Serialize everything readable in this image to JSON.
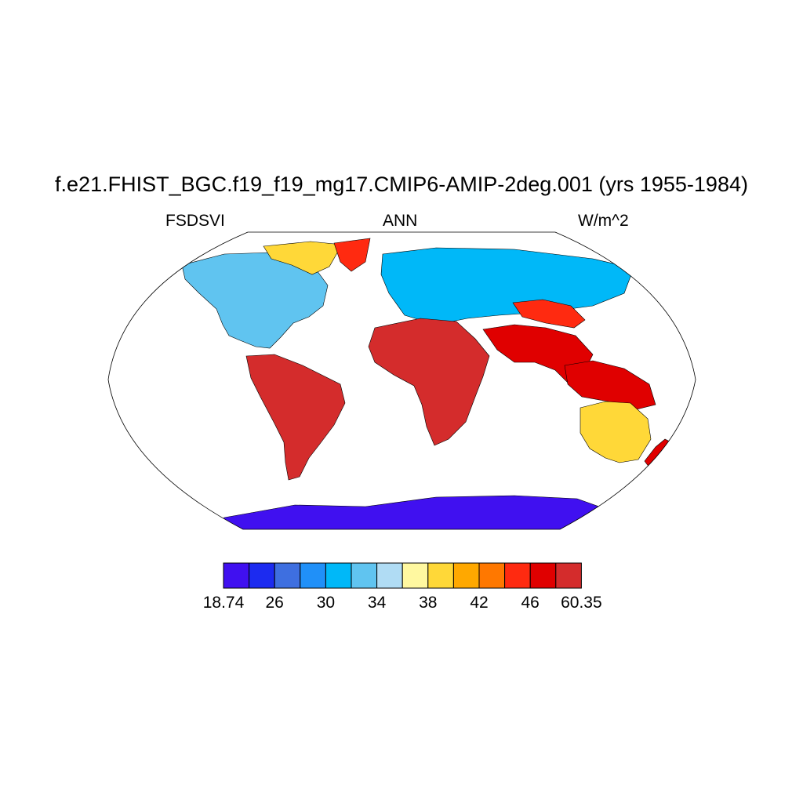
{
  "header": {
    "title": "f.e21.FHIST_BGC.f19_f19_mg17.CMIP6-AMIP-2deg.001 (yrs 1955-1984)",
    "variable": "FSDSVI",
    "season": "ANN",
    "units": "W/m^2"
  },
  "colorbar": {
    "colors": [
      "#4010F0",
      "#1C2BF0",
      "#3E6FE0",
      "#2090F8",
      "#00B8F8",
      "#60C4F0",
      "#B0DCF4",
      "#FFF8A0",
      "#FFD838",
      "#FFA800",
      "#FF7800",
      "#FF2A10",
      "#E00000",
      "#D42C2C"
    ],
    "tick_labels": [
      "18.74",
      "26",
      "30",
      "34",
      "38",
      "42",
      "46",
      "60.35"
    ]
  },
  "map": {
    "projection": "robinson",
    "regions": [
      {
        "name": "north-america",
        "category": "mid-latitude",
        "color_index": 5
      },
      {
        "name": "canadian-arctic",
        "category": "high-latitude",
        "color_index": 8
      },
      {
        "name": "greenland",
        "category": "polar",
        "color_index": 11
      },
      {
        "name": "eurasia-north",
        "category": "mid-latitude",
        "color_index": 4
      },
      {
        "name": "south-america",
        "category": "tropical",
        "color_index": 13
      },
      {
        "name": "africa",
        "category": "tropical",
        "color_index": 13
      },
      {
        "name": "arabia-india",
        "category": "subtropical",
        "color_index": 12
      },
      {
        "name": "tibet",
        "category": "subtropical",
        "color_index": 11
      },
      {
        "name": "maritime-continent",
        "category": "tropical",
        "color_index": 12
      },
      {
        "name": "australia",
        "category": "subtropical",
        "color_index": 8
      },
      {
        "name": "new-zealand",
        "category": "mid-latitude",
        "color_index": 12
      },
      {
        "name": "antarctica",
        "category": "polar",
        "color_index": 0
      }
    ]
  }
}
